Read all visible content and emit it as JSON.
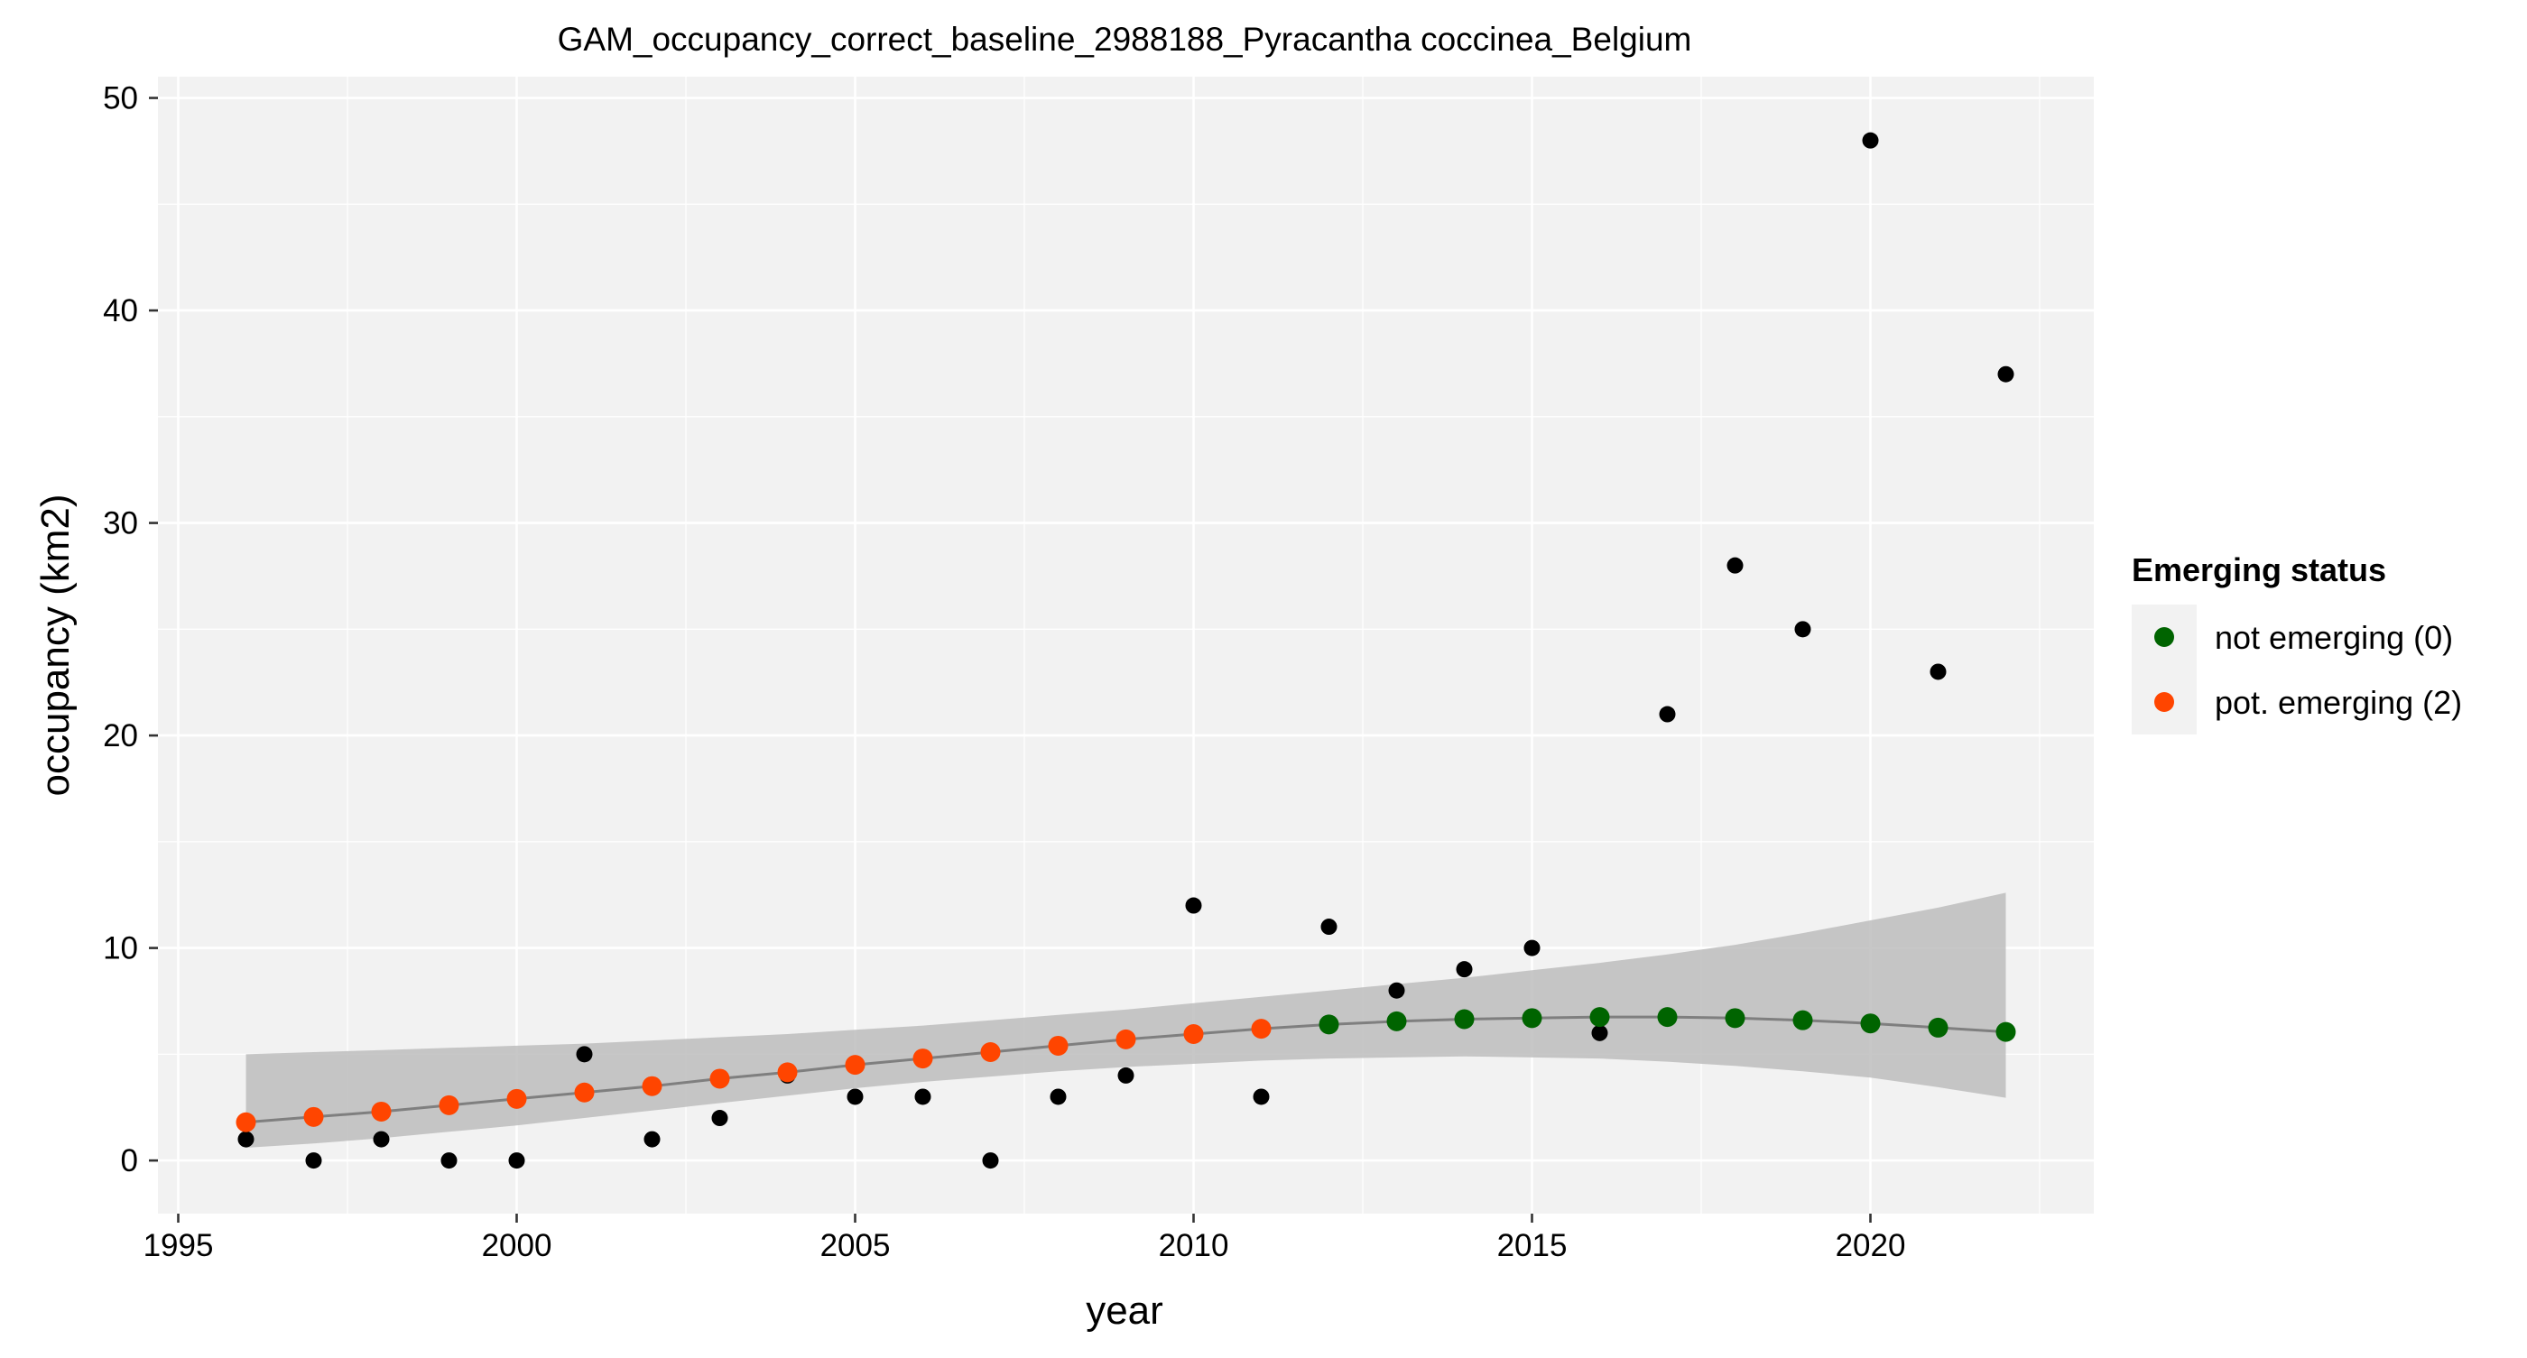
{
  "chart_data": {
    "type": "scatter",
    "title": "GAM_occupancy_correct_baseline_2988188_Pyracantha coccinea_Belgium",
    "xlabel": "year",
    "ylabel": "occupancy (km2)",
    "xlim": [
      1994.7,
      2023.3
    ],
    "ylim": [
      -2.5,
      51
    ],
    "x_ticks": [
      1995,
      2000,
      2005,
      2010,
      2015,
      2020
    ],
    "y_ticks": [
      0,
      10,
      20,
      30,
      40,
      50
    ],
    "grid": true,
    "legend": {
      "title": "Emerging status",
      "position": "right",
      "entries": [
        {
          "label": "not emerging (0)",
          "color": "#006400"
        },
        {
          "label": "pot. emerging (2)",
          "color": "#FF4500"
        }
      ]
    },
    "observed": {
      "color": "#000000",
      "x": [
        1996,
        1997,
        1998,
        1999,
        2000,
        2001,
        2002,
        2003,
        2004,
        2005,
        2006,
        2007,
        2008,
        2009,
        2010,
        2011,
        2012,
        2013,
        2014,
        2015,
        2016,
        2017,
        2018,
        2019,
        2020,
        2021,
        2022
      ],
      "y": [
        1,
        0,
        1,
        0,
        0,
        5,
        1,
        2,
        4,
        3,
        3,
        0,
        3,
        4,
        12,
        3,
        11,
        8,
        9,
        10,
        6,
        21,
        28,
        25,
        48,
        23,
        37
      ]
    },
    "fitted": {
      "line_color": "#7f7f7f",
      "band_color": "#bdbdbd",
      "x": [
        1996,
        1997,
        1998,
        1999,
        2000,
        2001,
        2002,
        2003,
        2004,
        2005,
        2006,
        2007,
        2008,
        2009,
        2010,
        2011,
        2012,
        2013,
        2014,
        2015,
        2016,
        2017,
        2018,
        2019,
        2020,
        2021,
        2022
      ],
      "y": [
        1.8,
        2.05,
        2.3,
        2.6,
        2.9,
        3.2,
        3.5,
        3.85,
        4.15,
        4.5,
        4.8,
        5.1,
        5.4,
        5.7,
        5.95,
        6.2,
        6.4,
        6.55,
        6.65,
        6.7,
        6.75,
        6.75,
        6.7,
        6.6,
        6.45,
        6.25,
        6.05
      ],
      "lower": [
        0.6,
        0.8,
        1.05,
        1.35,
        1.65,
        2.0,
        2.35,
        2.7,
        3.05,
        3.4,
        3.7,
        3.95,
        4.2,
        4.4,
        4.55,
        4.7,
        4.8,
        4.85,
        4.9,
        4.85,
        4.8,
        4.65,
        4.45,
        4.2,
        3.9,
        3.45,
        2.95
      ],
      "upper": [
        5.0,
        5.1,
        5.2,
        5.3,
        5.4,
        5.5,
        5.65,
        5.8,
        5.95,
        6.15,
        6.35,
        6.6,
        6.85,
        7.1,
        7.4,
        7.7,
        8.0,
        8.3,
        8.6,
        8.95,
        9.3,
        9.7,
        10.15,
        10.7,
        11.3,
        11.9,
        12.6
      ],
      "status": [
        2,
        2,
        2,
        2,
        2,
        2,
        2,
        2,
        2,
        2,
        2,
        2,
        2,
        2,
        2,
        2,
        0,
        0,
        0,
        0,
        0,
        0,
        0,
        0,
        0,
        0,
        0
      ]
    }
  }
}
